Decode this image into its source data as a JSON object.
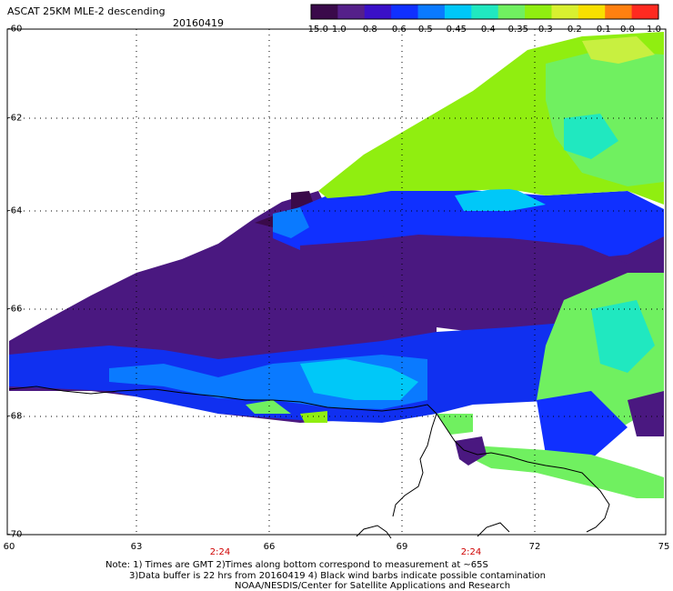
{
  "header": {
    "title": "ASCAT 25KM MLE-2 descending",
    "date": "20160419"
  },
  "colorbar": {
    "ticks": [
      "-15.0",
      "-1.0",
      "-0.8",
      "-0.6",
      "-0.5",
      "-0.45",
      "-0.4",
      "-0.35",
      "-0.3",
      "-0.2",
      "-0.1",
      "0.0",
      "1.0"
    ],
    "colors": [
      "#3a0a4a",
      "#55208a",
      "#3a10c8",
      "#1030ff",
      "#0a7aff",
      "#00c8f8",
      "#20e8c0",
      "#70f060",
      "#90ee10",
      "#d8f030",
      "#f8e000",
      "#ff8010",
      "#ff2a20"
    ]
  },
  "axes": {
    "lat_labels": [
      "-60",
      "-62",
      "-64",
      "-66",
      "-68",
      "-70"
    ],
    "lon_labels": [
      "60",
      "63",
      "66",
      "69",
      "72",
      "75"
    ]
  },
  "times": [
    "2:24",
    "2:24"
  ],
  "notes": [
    "Note: 1) Times are GMT 2)Times along bottom correspond to measurement at ~65S",
    "3)Data buffer is 22 hrs from 20160419 4) Black wind barbs indicate possible contamination",
    "NOAA/NESDIS/Center for Satellite Applications and Research"
  ]
}
